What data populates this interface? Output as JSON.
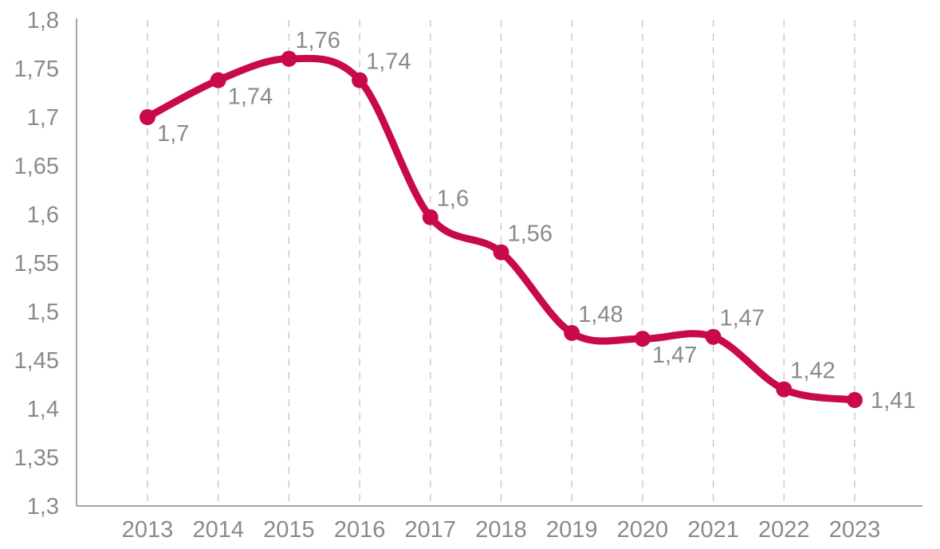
{
  "chart_data": {
    "type": "line",
    "title": "",
    "xlabel": "",
    "ylabel": "",
    "categories": [
      "2013",
      "2014",
      "2015",
      "2016",
      "2017",
      "2018",
      "2019",
      "2020",
      "2021",
      "2022",
      "2023"
    ],
    "series": [
      {
        "values": [
          1.7,
          1.738,
          1.76,
          1.738,
          1.597,
          1.561,
          1.478,
          1.472,
          1.474,
          1.42,
          1.409
        ],
        "labels": [
          "1,7",
          "1,74",
          "1,76",
          "1,74",
          "1,6",
          "1,56",
          "1,48",
          "1,47",
          "1,47",
          "1,42",
          "1,41"
        ],
        "label_positions": [
          "below-right",
          "below-right",
          "above-right",
          "above-right",
          "above-right",
          "above-right",
          "above-right",
          "below-right",
          "above-right",
          "above-right",
          "right"
        ]
      }
    ],
    "ylim": [
      1.3,
      1.8
    ],
    "yticks": [
      1.3,
      1.35,
      1.4,
      1.45,
      1.5,
      1.55,
      1.6,
      1.65,
      1.7,
      1.75,
      1.8
    ],
    "ytick_labels": [
      "1,3",
      "1,35",
      "1,4",
      "1,45",
      "1,5",
      "1,55",
      "1,6",
      "1,65",
      "1,7",
      "1,75",
      "1,8"
    ],
    "grid": "vertical-dashed",
    "legend": "none",
    "line_style": "smooth",
    "colors": {
      "line": "#c8094c",
      "axis": "#a6a6a6",
      "grid": "#bfbfbf",
      "text": "#8a8a8a"
    }
  }
}
